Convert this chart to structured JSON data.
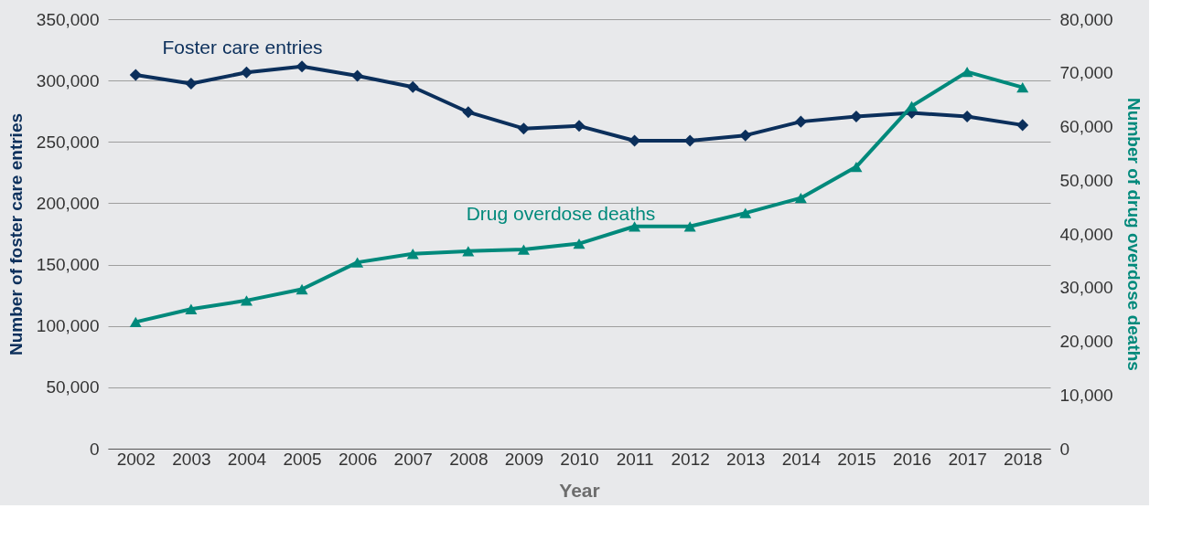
{
  "chart_data": {
    "type": "line",
    "xlabel": "Year",
    "ylabel": "Number of foster care entries",
    "y2label": "Number of drug overdose deaths",
    "categories": [
      "2002",
      "2003",
      "2004",
      "2005",
      "2006",
      "2007",
      "2008",
      "2009",
      "2010",
      "2011",
      "2012",
      "2013",
      "2014",
      "2015",
      "2016",
      "2017",
      "2018"
    ],
    "series": [
      {
        "name": "Foster care entries",
        "color": "#0b2f5b",
        "marker": "diamond",
        "values": [
          304500,
          297500,
          306600,
          311500,
          303800,
          294700,
          274300,
          260900,
          263000,
          251000,
          251000,
          255300,
          266500,
          270700,
          273600,
          270700,
          263700
        ]
      },
      {
        "name": "Drug overdose deaths",
        "color": "#00897b",
        "marker": "triangle",
        "axis": "y2",
        "values": [
          23600,
          26000,
          27600,
          29700,
          34700,
          36300,
          36800,
          37100,
          38200,
          41400,
          41400,
          43900,
          46700,
          52500,
          63800,
          70200,
          67300
        ]
      }
    ],
    "ylim": [
      0,
      350000
    ],
    "yticks": [
      0,
      {
        "value": 50000,
        "label": "50,000"
      },
      {
        "value": 100000,
        "label": "100,000"
      },
      {
        "value": 150000,
        "label": "150,000"
      },
      {
        "value": 200000,
        "label": "200,000"
      },
      {
        "value": 250000,
        "label": "250,000"
      },
      {
        "value": 300000,
        "label": "300,000"
      },
      {
        "value": 350000,
        "label": "350,000"
      }
    ],
    "y2lim": [
      0,
      80000
    ],
    "y2ticks": [
      0,
      {
        "value": 10000,
        "label": "10,000"
      },
      {
        "value": 20000,
        "label": "20,000"
      },
      {
        "value": 30000,
        "label": "30,000"
      },
      {
        "value": 40000,
        "label": "40,000"
      },
      {
        "value": 50000,
        "label": "50,000"
      },
      {
        "value": 60000,
        "label": "60,000"
      },
      {
        "value": 70000,
        "label": "70,000"
      },
      {
        "value": 80000,
        "label": "80,000"
      }
    ],
    "grid": "y",
    "line_style": "solid"
  }
}
